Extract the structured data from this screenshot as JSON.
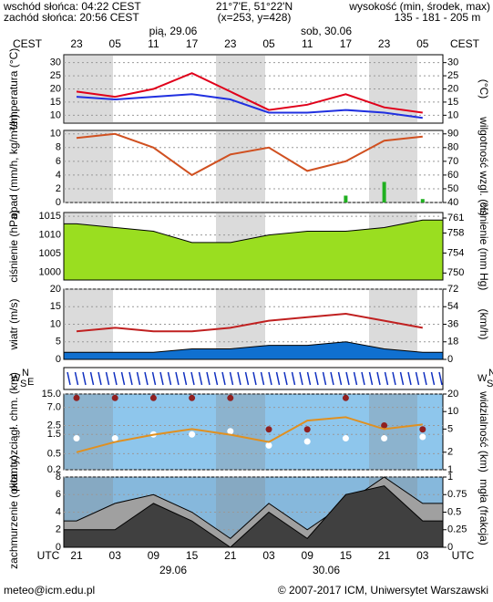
{
  "header": {
    "sunrise": "wschód słońca: 04:22 CEST",
    "sunset": "zachód słońca: 20:56 CEST",
    "coords": "21°7'E, 51°22'N",
    "grid": "(x=253, y=428)",
    "altitude_title": "wysokość (min, środek, max)",
    "altitude": "135 - 181 - 205 m"
  },
  "top_axis": {
    "label": "CEST",
    "ticks": [
      "23",
      "05",
      "11",
      "17",
      "23",
      "05",
      "11",
      "17",
      "23",
      "05"
    ],
    "days": [
      "pią, 29.06",
      "sob, 30.06"
    ]
  },
  "x_axis": {
    "label": "UTC",
    "ticks": [
      "21",
      "03",
      "09",
      "15",
      "21",
      "03",
      "09",
      "15",
      "21",
      "03"
    ],
    "dates": [
      "29.06",
      "30.06"
    ]
  },
  "compass": {
    "w": "W",
    "n": "N",
    "s": "S",
    "e": "E"
  },
  "footer": {
    "email": "meteo@icm.edu.pl",
    "copyright": "© 2007-2017 ICM, Uniwersytet Warszawski"
  },
  "chart_data": [
    {
      "type": "line",
      "ylabel": "temperatura (°C)",
      "y2label": "(°C)",
      "ylim": [
        7,
        33
      ],
      "yticks": [
        10,
        15,
        20,
        25,
        30
      ],
      "y2lim": [
        7,
        33
      ],
      "y2ticks": [
        10,
        15,
        20,
        25,
        30
      ],
      "series": [
        {
          "type": "line",
          "color": "#e0001a",
          "values": [
            19,
            17,
            20,
            26,
            19,
            12,
            14,
            18,
            13,
            11
          ]
        },
        {
          "type": "line",
          "color": "#2030e0",
          "values": [
            17,
            16,
            17,
            18,
            16,
            11,
            11,
            12,
            11,
            9
          ]
        }
      ]
    },
    {
      "type": "line",
      "ylabel": "opad (mm/h, kg/m²/h)",
      "y2label": "wilgotność wzgl. (%)",
      "ylim": [
        0,
        10.5
      ],
      "yticks": [
        0,
        2,
        4,
        6,
        8,
        10
      ],
      "y2lim": [
        40,
        92.5
      ],
      "y2ticks": [
        40,
        50,
        60,
        70,
        80,
        90
      ],
      "series": [
        {
          "type": "bar",
          "color": "#20b020",
          "values": [
            0,
            0,
            0,
            0,
            0,
            0,
            0,
            1,
            3,
            0.5
          ]
        },
        {
          "type": "line",
          "color": "#d05020",
          "axis": "y2",
          "values": [
            87,
            90,
            80,
            60,
            75,
            80,
            63,
            70,
            85,
            88
          ]
        }
      ]
    },
    {
      "type": "line",
      "ylabel": "ciśnienie (hPa)",
      "y2label": "ciśnienie (mm Hg)",
      "ylim": [
        998,
        1016
      ],
      "yticks": [
        1000,
        1005,
        1010,
        1015
      ],
      "y2lim": [
        748.6,
        762.1
      ],
      "y2ticks": [
        750,
        754,
        758,
        761
      ],
      "series": [
        {
          "type": "area",
          "color": "#9ade20",
          "values": [
            1013,
            1012,
            1011,
            1008,
            1008,
            1010,
            1011,
            1011,
            1012,
            1014
          ]
        }
      ]
    },
    {
      "type": "line",
      "ylabel": "wiatr (m/s)",
      "y2label": "(km/h)",
      "ylim": [
        0,
        20
      ],
      "yticks": [
        0,
        5,
        10,
        15,
        20
      ],
      "y2lim": [
        0,
        72
      ],
      "y2ticks": [
        0,
        18,
        36,
        54,
        72
      ],
      "series": [
        {
          "type": "area",
          "color": "#1070d0",
          "values": [
            2,
            2,
            2,
            3,
            3,
            4,
            4,
            5,
            3,
            2
          ]
        },
        {
          "type": "line",
          "color": "#c02020",
          "values": [
            8,
            9,
            8,
            8,
            9,
            11,
            12,
            13,
            11,
            9
          ]
        }
      ]
    },
    {
      "type": "line",
      "log": true,
      "ylabel": "pion. rozciągł. chm. (km)",
      "y2label": "widzialność (km)",
      "ylim": [
        0.2,
        15
      ],
      "yticks": [
        0.2,
        0.5,
        1.5,
        2.5,
        {
          "value": 7,
          "label": "7.0"
        },
        {
          "value": 15,
          "label": "15.0"
        }
      ],
      "y2lim": [
        1,
        20
      ],
      "y2ticks": [
        1,
        2,
        5,
        10,
        20
      ],
      "series": [
        {
          "type": "dots",
          "color": "#902020",
          "values": [
            12,
            12,
            12,
            12,
            12,
            2,
            2,
            12,
            2.5,
            2
          ]
        },
        {
          "type": "dots",
          "color": "#ffffff",
          "values": [
            1.2,
            1.2,
            1.5,
            1.5,
            1.8,
            0.8,
            1,
            1.2,
            1.2,
            1.3
          ]
        },
        {
          "type": "line",
          "color": "#e09020",
          "axis": "y2",
          "values": [
            2,
            3,
            4,
            5,
            4,
            3,
            7,
            8,
            5,
            6
          ]
        }
      ]
    },
    {
      "type": "line",
      "ylabel": "zachmurzenie (oktanty)",
      "y2label": "mgła (frakcja)",
      "ylim": [
        0,
        8
      ],
      "yticks": [
        0,
        2,
        4,
        6,
        8
      ],
      "y2lim": [
        0,
        1
      ],
      "y2ticks": [
        0,
        0.25,
        0.5,
        0.75,
        1
      ],
      "series": [
        {
          "type": "area",
          "color": "#a0a0a0",
          "values": [
            3,
            5,
            6,
            4,
            1,
            5,
            2,
            5,
            8,
            5
          ]
        },
        {
          "type": "area",
          "color": "#404040",
          "values": [
            2,
            2,
            5,
            3,
            0,
            4,
            1,
            6,
            7,
            3
          ]
        }
      ]
    }
  ]
}
